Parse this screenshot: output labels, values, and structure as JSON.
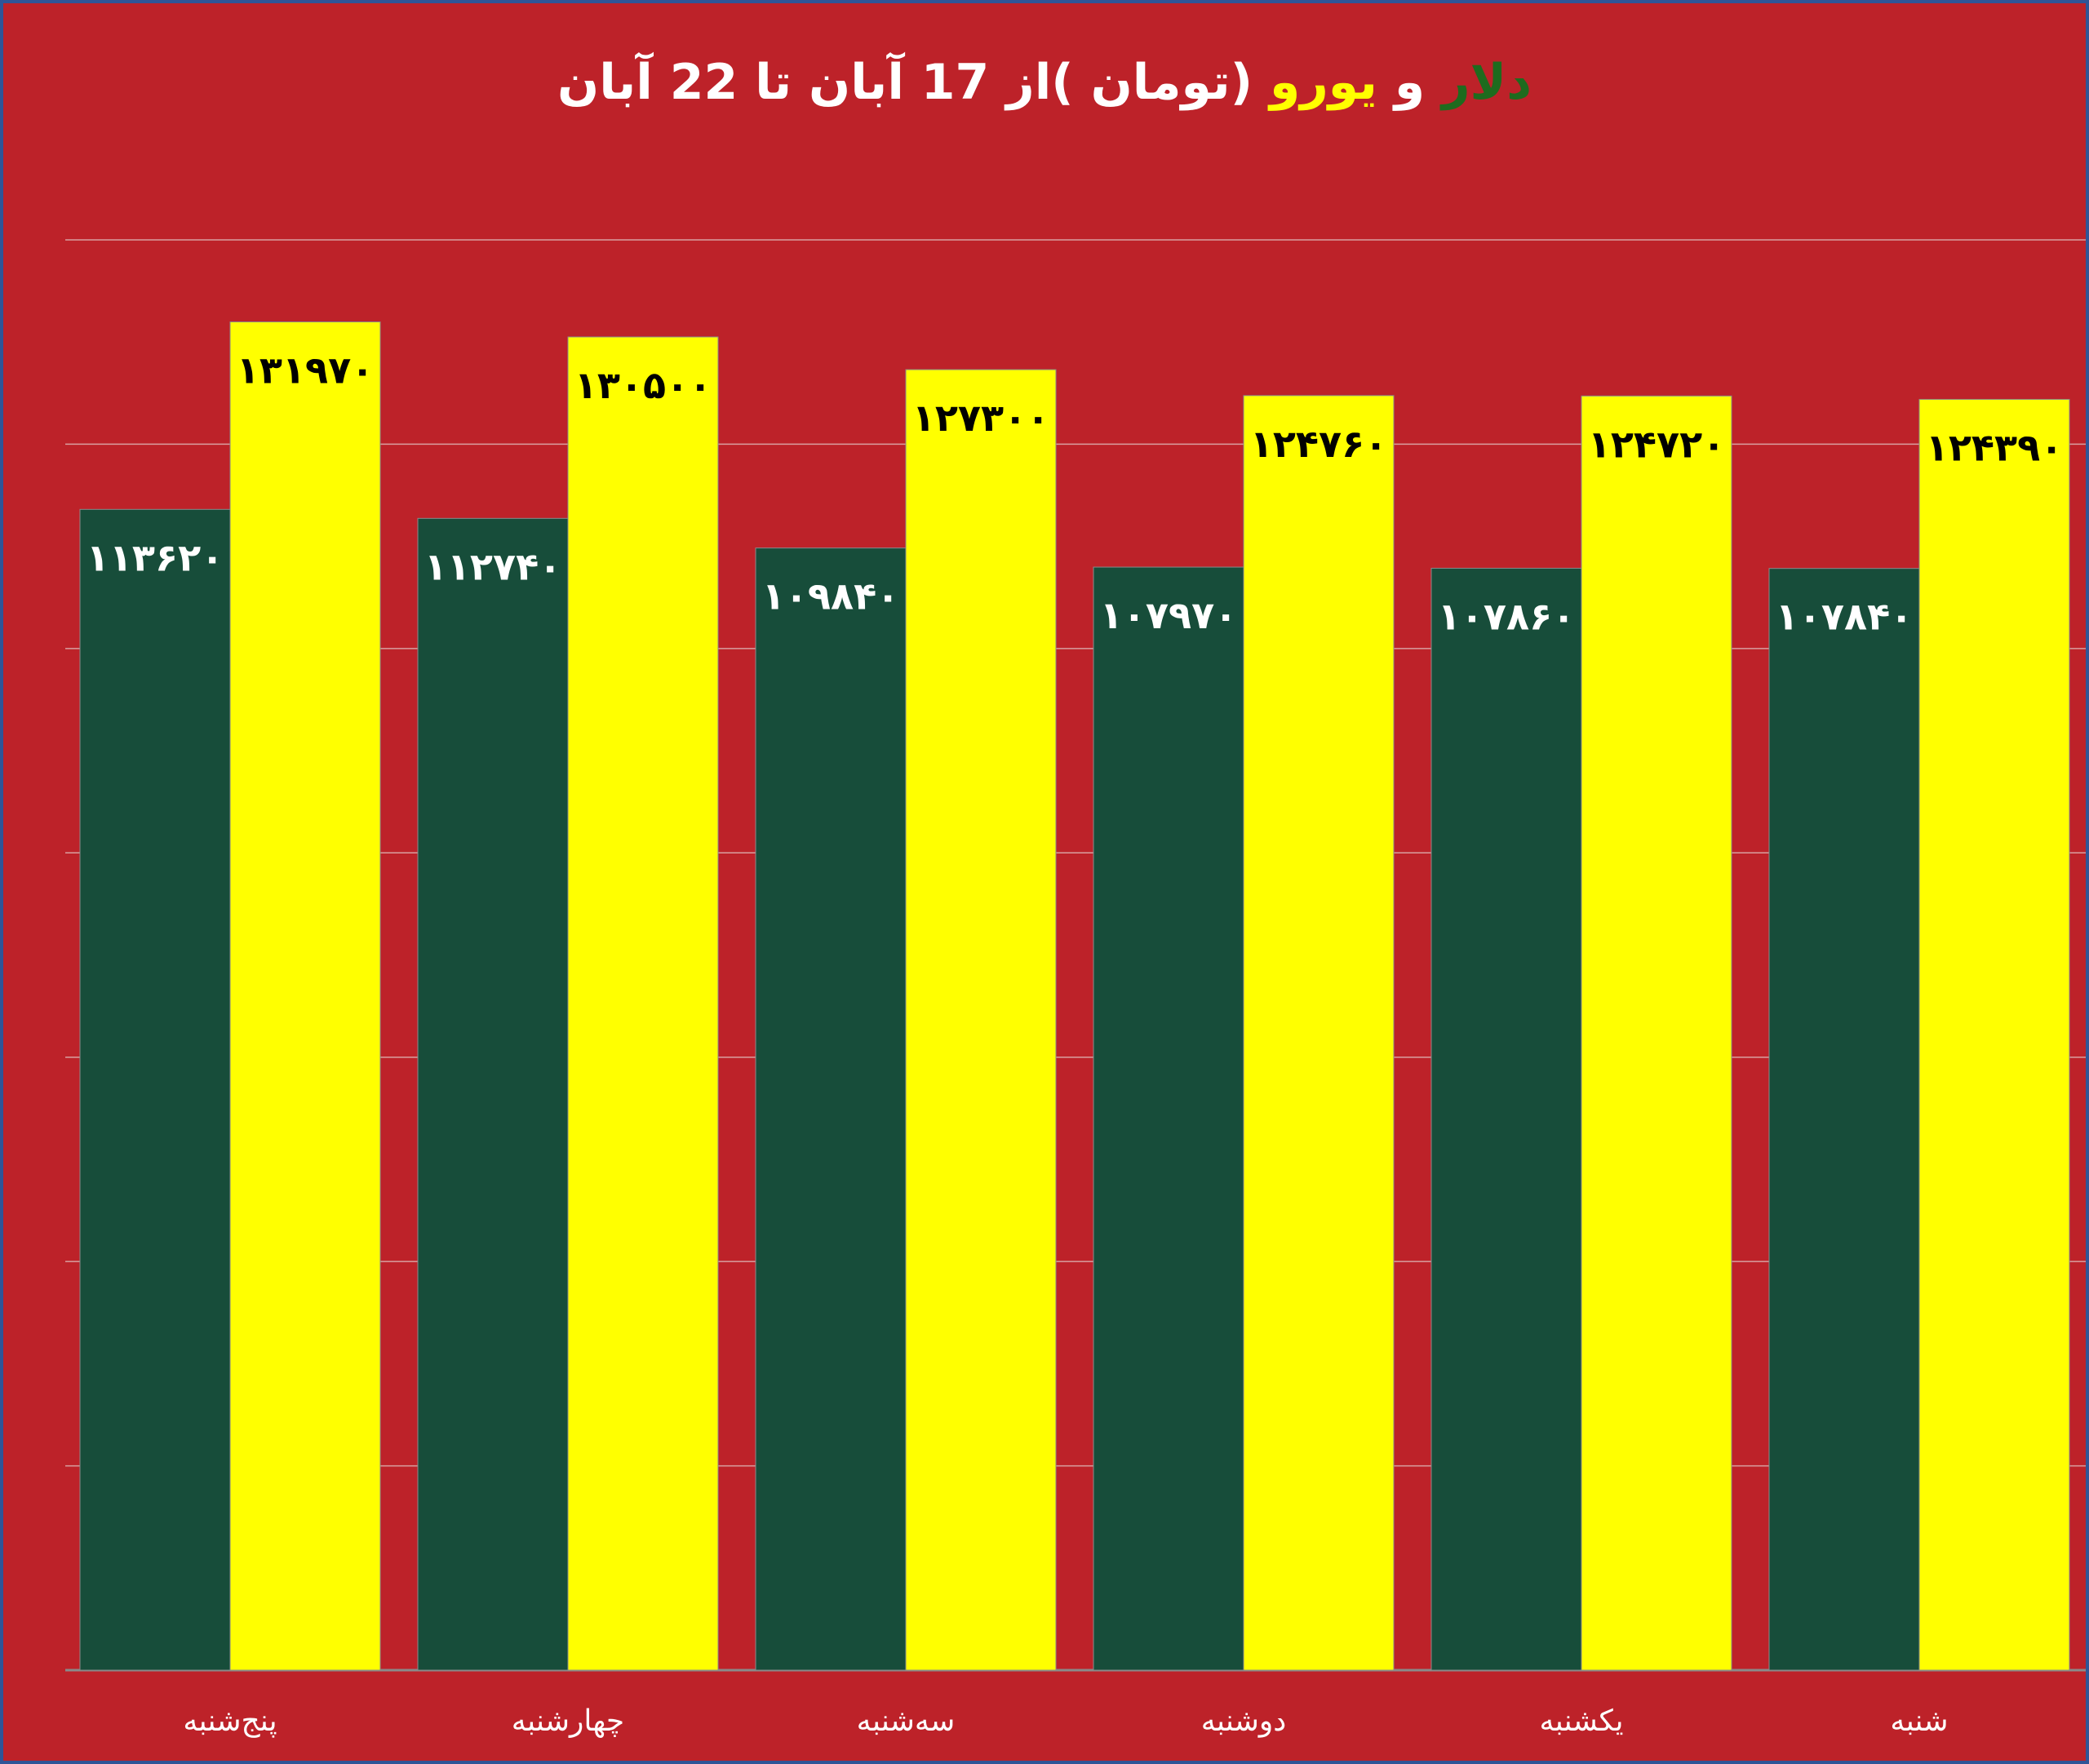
{
  "title": {
    "dollar": "دلار",
    "and": "و",
    "euro": "یورو",
    "rest": "(تومان )از 17 آبان تا 22 آبان"
  },
  "colors": {
    "background": "#bd2229",
    "dollar": "#174d3a",
    "euro": "#ffff00",
    "title_dollar": "#1e6b1e",
    "title_euro": "#ffff00",
    "grid": "#d9a0a0"
  },
  "chart_data": {
    "type": "bar",
    "categories": [
      "پنج‌شنبه",
      "چهارشنبه",
      "سه‌شنبه",
      "دوشنبه",
      "یکشنبه",
      "شنبه"
    ],
    "series": [
      {
        "name": "دلار",
        "values": [
          113620,
          112740,
          109840,
          107970,
          107860,
          107840
        ],
        "labels": [
          "۱۱۳۶۲۰",
          "۱۱۲۷۴۰",
          "۱۰۹۸۴۰",
          "۱۰۷۹۷۰",
          "۱۰۷۸۶۰",
          "۱۰۷۸۴۰"
        ]
      },
      {
        "name": "یورو",
        "values": [
          131970,
          130500,
          127300,
          124760,
          124720,
          124390
        ],
        "labels": [
          "۱۳۱۹۷۰",
          "۱۳۰۵۰۰",
          "۱۲۷۳۰۰",
          "۱۲۴۷۶۰",
          "۱۲۴۷۲۰",
          "۱۲۴۳۹۰"
        ]
      }
    ],
    "ylim": [
      0,
      140000
    ],
    "grid": true,
    "xlabel": "",
    "ylabel": ""
  }
}
